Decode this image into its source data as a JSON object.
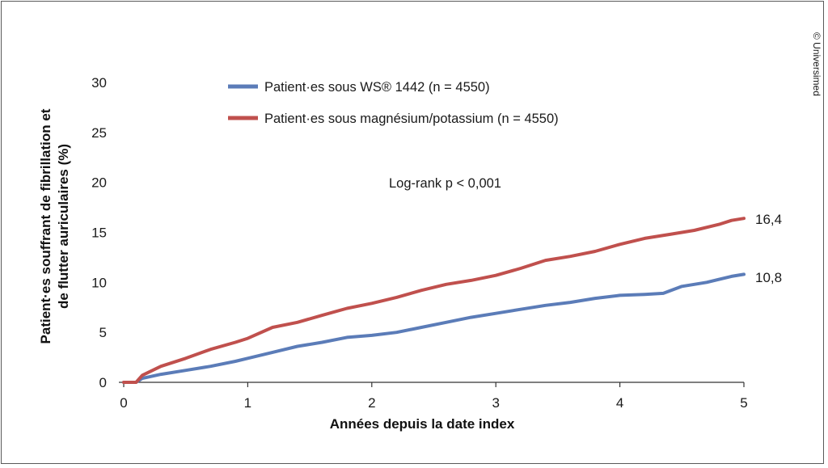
{
  "chart_data": {
    "type": "line",
    "xlabel": "Années depuis la date index",
    "ylabel": [
      "Patient·es souffrant de fibrillation et",
      "de flutter auriculaires (%)"
    ],
    "xlim": [
      0,
      5
    ],
    "ylim": [
      0,
      30
    ],
    "x_ticks": [
      "0",
      "1",
      "2",
      "3",
      "4",
      "5"
    ],
    "y_ticks": [
      "0",
      "5",
      "10",
      "15",
      "20",
      "25",
      "30"
    ],
    "grid": false,
    "legend_position": "top-center",
    "annotation": "Log-rank p < 0,001",
    "series": [
      {
        "name": "Patient·es sous WS® 1442 (n = 4550)",
        "color": "#5b7cb8",
        "end_label": "10,8",
        "x": [
          0,
          0.1,
          0.15,
          0.3,
          0.5,
          0.7,
          0.9,
          1.0,
          1.2,
          1.4,
          1.6,
          1.8,
          2.0,
          2.2,
          2.4,
          2.6,
          2.8,
          3.0,
          3.2,
          3.4,
          3.6,
          3.8,
          4.0,
          4.2,
          4.35,
          4.5,
          4.7,
          4.9,
          5.0
        ],
        "y": [
          0,
          0,
          0.4,
          0.8,
          1.2,
          1.6,
          2.1,
          2.4,
          3.0,
          3.6,
          4.0,
          4.5,
          4.7,
          5.0,
          5.5,
          6.0,
          6.5,
          6.9,
          7.3,
          7.7,
          8.0,
          8.4,
          8.7,
          8.8,
          8.9,
          9.6,
          10.0,
          10.6,
          10.8
        ]
      },
      {
        "name": "Patient·es sous magnésium/potassium (n = 4550)",
        "color": "#c0504d",
        "end_label": "16,4",
        "x": [
          0,
          0.1,
          0.15,
          0.3,
          0.5,
          0.7,
          0.9,
          1.0,
          1.2,
          1.4,
          1.6,
          1.8,
          2.0,
          2.2,
          2.4,
          2.6,
          2.8,
          3.0,
          3.2,
          3.4,
          3.6,
          3.8,
          4.0,
          4.2,
          4.4,
          4.6,
          4.8,
          4.9,
          5.0
        ],
        "y": [
          0,
          0,
          0.7,
          1.6,
          2.4,
          3.3,
          4.0,
          4.4,
          5.5,
          6.0,
          6.7,
          7.4,
          7.9,
          8.5,
          9.2,
          9.8,
          10.2,
          10.7,
          11.4,
          12.2,
          12.6,
          13.1,
          13.8,
          14.4,
          14.8,
          15.2,
          15.8,
          16.2,
          16.4
        ]
      }
    ]
  },
  "copyright": "© Universimed"
}
